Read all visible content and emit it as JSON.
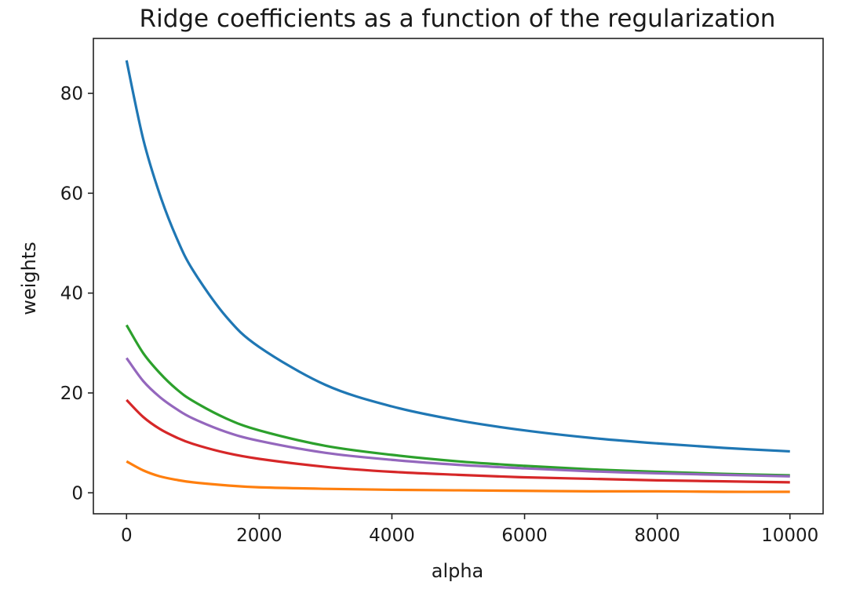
{
  "chart_data": {
    "type": "line",
    "title": "Ridge coefficients as a function of the regularization",
    "xlabel": "alpha",
    "ylabel": "weights",
    "xlim": [
      -500,
      10500
    ],
    "ylim": [
      -4.2,
      91
    ],
    "xticks": [
      0,
      2000,
      4000,
      6000,
      8000,
      10000
    ],
    "xtick_labels": [
      "0",
      "2000",
      "4000",
      "6000",
      "8000",
      "10000"
    ],
    "yticks": [
      0,
      20,
      40,
      60,
      80
    ],
    "ytick_labels": [
      "0",
      "20",
      "40",
      "60",
      "80"
    ],
    "grid": false,
    "legend": "none",
    "series": [
      {
        "color": "#1f77b4",
        "x": [
          0,
          250,
          500,
          750,
          1000,
          1500,
          2000,
          3000,
          4000,
          5000,
          6000,
          7000,
          8000,
          9000,
          10000
        ],
        "values": [
          86.6,
          70.9,
          59.8,
          51.2,
          44.6,
          35.3,
          29.2,
          21.6,
          17.3,
          14.5,
          12.5,
          11.0,
          9.9,
          9.0,
          8.3
        ]
      },
      {
        "color": "#ff7f0e",
        "x": [
          0,
          250,
          500,
          750,
          1000,
          1500,
          2000,
          3000,
          4000,
          5000,
          6000,
          7000,
          8000,
          9000,
          10000
        ],
        "values": [
          6.3,
          4.5,
          3.3,
          2.6,
          2.1,
          1.5,
          1.1,
          0.8,
          0.6,
          0.5,
          0.4,
          0.3,
          0.3,
          0.2,
          0.2
        ]
      },
      {
        "color": "#2ca02c",
        "x": [
          0,
          250,
          500,
          750,
          1000,
          1500,
          2000,
          3000,
          4000,
          5000,
          6000,
          7000,
          8000,
          9000,
          10000
        ],
        "values": [
          33.6,
          28.0,
          24.0,
          20.8,
          18.4,
          14.9,
          12.5,
          9.4,
          7.6,
          6.3,
          5.4,
          4.7,
          4.2,
          3.8,
          3.5
        ]
      },
      {
        "color": "#d62728",
        "x": [
          0,
          250,
          500,
          750,
          1000,
          1500,
          2000,
          3000,
          4000,
          5000,
          6000,
          7000,
          8000,
          9000,
          10000
        ],
        "values": [
          18.6,
          15.2,
          12.8,
          11.1,
          9.8,
          8.0,
          6.8,
          5.2,
          4.2,
          3.6,
          3.1,
          2.8,
          2.5,
          2.3,
          2.1
        ]
      },
      {
        "color": "#9467bd",
        "x": [
          0,
          250,
          500,
          750,
          1000,
          1500,
          2000,
          3000,
          4000,
          5000,
          6000,
          7000,
          8000,
          9000,
          10000
        ],
        "values": [
          27.0,
          22.4,
          19.2,
          16.8,
          14.9,
          12.2,
          10.4,
          8.0,
          6.6,
          5.6,
          4.9,
          4.3,
          3.9,
          3.6,
          3.3
        ]
      }
    ]
  }
}
